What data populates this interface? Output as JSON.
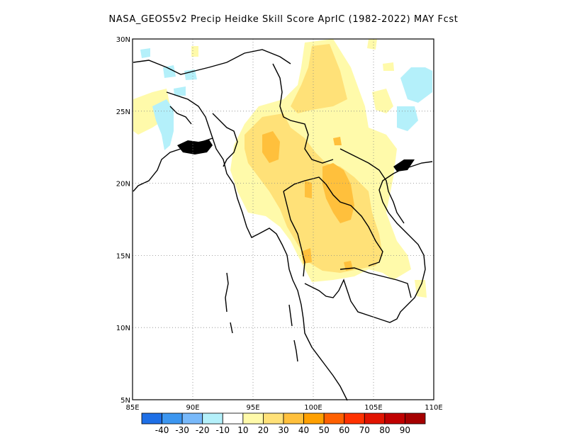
{
  "title": "NASA_GEOS5v2 Precip Heidke Skill Score AprIC (1982-2022) MAY Fcst",
  "lon_ticks": [
    "85E",
    "90E",
    "95E",
    "100E",
    "105E",
    "110E"
  ],
  "lat_ticks": [
    "30N",
    "25N",
    "20N",
    "15N",
    "10N",
    "5N"
  ],
  "colorbar": {
    "colors": [
      "#1e6fe6",
      "#3c96f0",
      "#78b9fa",
      "#b4f0fa",
      "#ffffff",
      "#fffaaa",
      "#ffe178",
      "#ffc03c",
      "#ffa000",
      "#ff6000",
      "#ff3200",
      "#e11400",
      "#c00000",
      "#a50000"
    ],
    "labels": [
      "-40",
      "-30",
      "-20",
      "-10",
      "10",
      "20",
      "30",
      "40",
      "50",
      "60",
      "70",
      "80",
      "90"
    ]
  }
}
